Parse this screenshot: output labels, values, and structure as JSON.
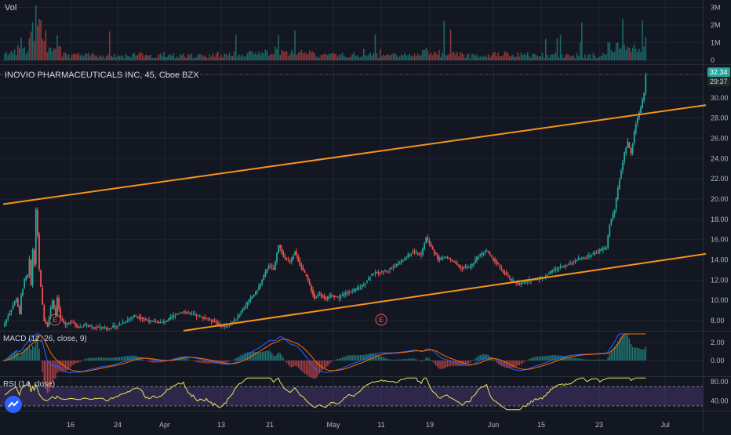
{
  "chart_data": {
    "type": "candlestick",
    "symbol_label": "INOVIO PHARMACEUTICALS INC, 45, Cboe BZX",
    "vol_label": "Vol",
    "macd_label": "MACD (12, 26, close, 9)",
    "rsi_label": "RSI (14, close)",
    "last_price": "32.34",
    "countdown": "29:37",
    "x_ticks": [
      "16",
      "24",
      "Apr",
      "13",
      "21",
      "May",
      "11",
      "19",
      "Jun",
      "15",
      "23",
      "Jul"
    ],
    "price_axis": {
      "ticks": [
        "8.00",
        "10.00",
        "12.00",
        "14.00",
        "16.00",
        "18.00",
        "20.00",
        "22.00",
        "24.00",
        "26.00",
        "28.00",
        "30.00"
      ],
      "ylim": [
        7,
        33
      ]
    },
    "vol_axis": {
      "ticks": [
        "0",
        "1M",
        "2M",
        "3M"
      ]
    },
    "macd_axis": {
      "ticks": [
        "0.00",
        "2.00"
      ]
    },
    "rsi_axis": {
      "ticks": [
        "40.00",
        "80.00"
      ]
    },
    "price_path": [
      [
        0,
        7.4
      ],
      [
        3,
        8.5
      ],
      [
        6,
        9.5
      ],
      [
        8,
        10.2
      ],
      [
        10,
        8.6
      ],
      [
        11,
        10.5
      ],
      [
        13,
        12.0
      ],
      [
        15,
        12.5
      ],
      [
        16,
        14.0
      ],
      [
        17,
        11.5
      ],
      [
        18,
        15.0
      ],
      [
        19,
        13.6
      ],
      [
        20,
        18.9
      ],
      [
        21,
        16.5
      ],
      [
        22,
        13.0
      ],
      [
        24,
        9.5
      ],
      [
        25,
        8.0
      ],
      [
        27,
        7.5
      ],
      [
        30,
        10.0
      ],
      [
        32,
        8.5
      ],
      [
        33,
        10.2
      ],
      [
        35,
        8.2
      ],
      [
        38,
        7.6
      ],
      [
        42,
        7.9
      ],
      [
        46,
        7.3
      ],
      [
        50,
        7.6
      ],
      [
        55,
        7.3
      ],
      [
        60,
        7.4
      ],
      [
        63,
        7.2
      ],
      [
        70,
        7.5
      ],
      [
        80,
        8.5
      ],
      [
        85,
        8.2
      ],
      [
        90,
        7.9
      ],
      [
        96,
        7.8
      ],
      [
        100,
        8.0
      ],
      [
        105,
        8.6
      ],
      [
        110,
        8.9
      ],
      [
        115,
        8.6
      ],
      [
        120,
        8.4
      ],
      [
        126,
        8.1
      ],
      [
        130,
        7.8
      ],
      [
        134,
        7.4
      ],
      [
        140,
        7.8
      ],
      [
        145,
        8.8
      ],
      [
        150,
        10.0
      ],
      [
        155,
        11.0
      ],
      [
        158,
        12.0
      ],
      [
        162,
        13.5
      ],
      [
        165,
        13.0
      ],
      [
        168,
        15.5
      ],
      [
        171,
        14.3
      ],
      [
        175,
        13.8
      ],
      [
        178,
        14.8
      ],
      [
        181,
        13.5
      ],
      [
        185,
        12.3
      ],
      [
        190,
        10.2
      ],
      [
        193,
        10.7
      ],
      [
        197,
        10.1
      ],
      [
        200,
        10.5
      ],
      [
        205,
        10.3
      ],
      [
        210,
        10.8
      ],
      [
        215,
        11.0
      ],
      [
        220,
        11.6
      ],
      [
        225,
        12.6
      ],
      [
        230,
        12.8
      ],
      [
        235,
        13.0
      ],
      [
        240,
        13.5
      ],
      [
        245,
        14.1
      ],
      [
        250,
        14.8
      ],
      [
        255,
        14.5
      ],
      [
        258,
        16.2
      ],
      [
        262,
        15.0
      ],
      [
        266,
        14.0
      ],
      [
        270,
        14.3
      ],
      [
        275,
        13.8
      ],
      [
        279,
        13.2
      ],
      [
        285,
        13.3
      ],
      [
        290,
        14.4
      ],
      [
        295,
        14.9
      ],
      [
        298,
        14.2
      ],
      [
        300,
        13.9
      ],
      [
        305,
        12.8
      ],
      [
        310,
        12.0
      ],
      [
        315,
        11.6
      ],
      [
        320,
        11.9
      ],
      [
        325,
        12.1
      ],
      [
        330,
        12.3
      ],
      [
        335,
        12.9
      ],
      [
        340,
        13.3
      ],
      [
        345,
        13.6
      ],
      [
        350,
        14.0
      ],
      [
        355,
        14.2
      ],
      [
        360,
        14.6
      ],
      [
        365,
        15.0
      ],
      [
        368,
        15.2
      ],
      [
        370,
        17.5
      ],
      [
        373,
        19.0
      ],
      [
        376,
        22.0
      ],
      [
        379,
        24.5
      ],
      [
        381,
        25.6
      ],
      [
        383,
        24.5
      ],
      [
        386,
        27.5
      ],
      [
        389,
        29.0
      ],
      [
        391,
        30.5
      ],
      [
        392,
        32.3
      ]
    ],
    "volume_level": 0.12,
    "trendlines": [
      {
        "color": "#f7931a",
        "from": [
          0,
          19.5
        ],
        "to": [
          400,
          28.0
        ]
      },
      {
        "color": "#f7931a",
        "from": [
          110,
          7.0
        ],
        "to": [
          400,
          13.6
        ]
      }
    ],
    "earnings_markers": [
      {
        "label": "E"
      },
      {
        "label": "E"
      }
    ],
    "colors": {
      "up": "#26a69a",
      "down": "#ef5350",
      "trend": "#f7931a",
      "macd": "#2962ff",
      "signal": "#ff6d00",
      "rsi": "#e8e85c",
      "rsi_band": "#7e57c2",
      "price_tag": "#26a69a",
      "bg": "#131722",
      "grid": "#1f2433"
    }
  }
}
